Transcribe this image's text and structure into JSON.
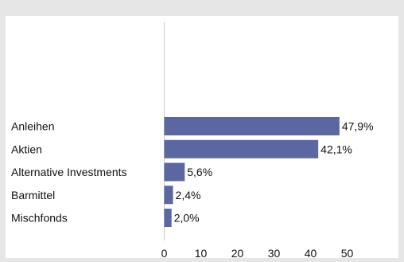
{
  "chart_data": {
    "type": "bar",
    "orientation": "horizontal",
    "categories": [
      "Anleihen",
      "Aktien",
      "Alternative Investments",
      "Barmittel",
      "Mischfonds"
    ],
    "values": [
      47.9,
      42.1,
      5.6,
      2.4,
      2.0
    ],
    "value_labels": [
      "47,9%",
      "42,1%",
      "5,6%",
      "2,4%",
      "2,0%"
    ],
    "xlim": [
      0,
      50
    ],
    "xticks": [
      "0",
      "10",
      "20",
      "30",
      "40",
      "50"
    ],
    "grid": false,
    "bar_color": "#5a67a0"
  }
}
